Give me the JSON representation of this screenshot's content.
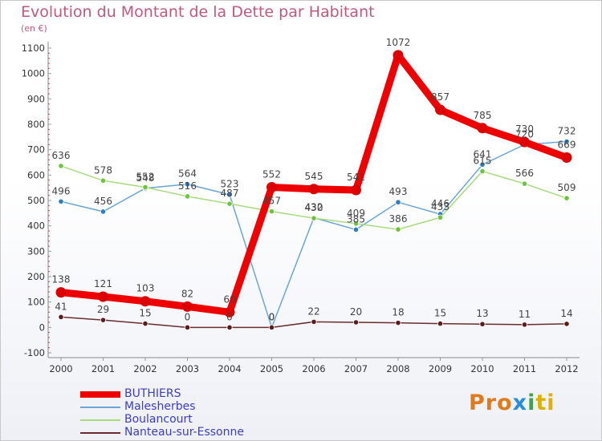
{
  "chart_data": {
    "type": "line",
    "title": "Evolution du Montant de la Dette par Habitant",
    "subtitle": "(en €)",
    "xlabel": "",
    "ylabel": "",
    "categories": [
      "2000",
      "2001",
      "2002",
      "2003",
      "2004",
      "2005",
      "2006",
      "2007",
      "2008",
      "2009",
      "2010",
      "2011",
      "2012"
    ],
    "ylim": [
      -100,
      1100
    ],
    "yticks": [
      -100,
      0,
      100,
      200,
      300,
      400,
      500,
      600,
      700,
      800,
      900,
      1000,
      1100
    ],
    "grid": false,
    "legend_position": "bottom-left",
    "series": [
      {
        "name": "BUTHIERS",
        "color": "#ee0000",
        "marker": "#dd0000",
        "emphasis": true,
        "values": [
          138,
          121,
          103,
          82,
          60,
          552,
          545,
          541,
          1072,
          857,
          785,
          730,
          669
        ],
        "labels": [
          "138",
          "121",
          "103",
          "82",
          "60",
          "552",
          "545",
          "541",
          "1072",
          "857",
          "785",
          "730",
          "669"
        ]
      },
      {
        "name": "Malesherbes",
        "color": "#6aa6d6",
        "marker": "#2c7cc4",
        "emphasis": false,
        "values": [
          496,
          456,
          548,
          564,
          523,
          0,
          432,
          385,
          493,
          446,
          641,
          720,
          732
        ],
        "labels": [
          "496",
          "456",
          "548",
          "564",
          "523",
          "0",
          "432",
          "385",
          "493",
          "446",
          "641",
          "720",
          "732"
        ]
      },
      {
        "name": "Boulancourt",
        "color": "#a6dc7c",
        "marker": "#6cc43c",
        "emphasis": false,
        "values": [
          636,
          578,
          552,
          516,
          487,
          457,
          430,
          409,
          386,
          433,
          615,
          566,
          509
        ],
        "labels": [
          "636",
          "578",
          "552",
          "516",
          "487",
          "457",
          "430",
          "409",
          "386",
          "433",
          "615",
          "566",
          "509"
        ]
      },
      {
        "name": "Nanteau-sur-Essonne",
        "color": "#6a2c2c",
        "marker": "#5a1c1c",
        "emphasis": false,
        "values": [
          41,
          29,
          15,
          0,
          0,
          0,
          22,
          20,
          18,
          15,
          13,
          11,
          14
        ],
        "labels": [
          "41",
          "29",
          "15",
          "0",
          "0",
          "0",
          "22",
          "20",
          "18",
          "15",
          "13",
          "11",
          "14"
        ]
      }
    ]
  },
  "branding": {
    "logo_parts": [
      "Pro",
      "x",
      "i",
      "ti"
    ]
  }
}
